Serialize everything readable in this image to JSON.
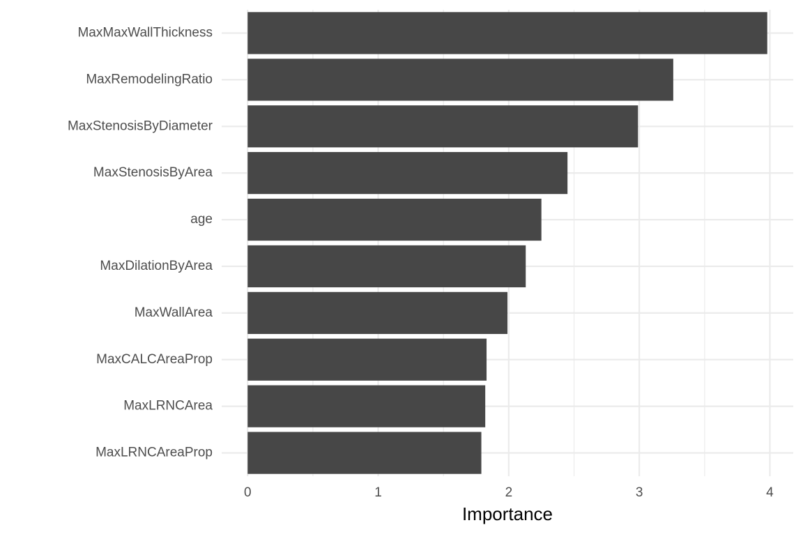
{
  "chart_data": {
    "type": "hbar",
    "x_label": "Importance",
    "categories": [
      "MaxMaxWallThickness",
      "MaxRemodelingRatio",
      "MaxStenosisByDiameter",
      "MaxStenosisByArea",
      "age",
      "MaxDilationByArea",
      "MaxWallArea",
      "MaxCALCAreaProp",
      "MaxLRNCArea",
      "MaxLRNCAreaProp"
    ],
    "values": [
      3.98,
      3.26,
      2.99,
      2.45,
      2.25,
      2.13,
      1.99,
      1.83,
      1.82,
      1.79
    ],
    "color": "#474747",
    "xlim": [
      -0.199,
      4.179
    ],
    "xticks": [
      0,
      1,
      2,
      3,
      4
    ],
    "x_minor_ticks": [
      0.5,
      1.5,
      2.5,
      3.5
    ],
    "grid": true
  }
}
